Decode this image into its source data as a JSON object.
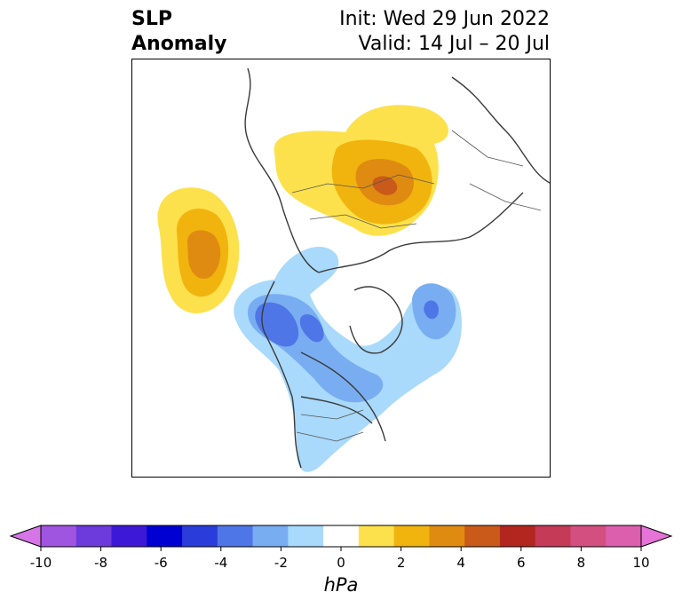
{
  "title": {
    "left_line1": "SLP",
    "left_line2": "Anomaly",
    "init": "Init: Wed 29 Jun 2022",
    "valid": "Valid: 14 Jul – 20 Jul"
  },
  "colorbar": {
    "units": "hPa",
    "ticks": [
      "-10",
      "-8",
      "-6",
      "-4",
      "-2",
      "0",
      "2",
      "4",
      "6",
      "8",
      "10"
    ],
    "colors": [
      "#d676e6",
      "#9f55e0",
      "#6d3adb",
      "#3d18d6",
      "#0000d2",
      "#2a3cd9",
      "#4f76e6",
      "#79adf2",
      "#a9d9fb",
      "#ffffff",
      "#fde14c",
      "#f1b40e",
      "#df8b12",
      "#c95a1a",
      "#b3261f",
      "#c43a57",
      "#d24f80",
      "#dc5fae",
      "#e673d7"
    ]
  },
  "anomalies": {
    "positive_light": "#fde14c",
    "positive_mid": "#f1b40e",
    "positive_strong": "#df8b12",
    "positive_core": "#c95a1a",
    "negative_light": "#a9d9fb",
    "negative_mid": "#79adf2",
    "negative_strong": "#4f76e6"
  }
}
